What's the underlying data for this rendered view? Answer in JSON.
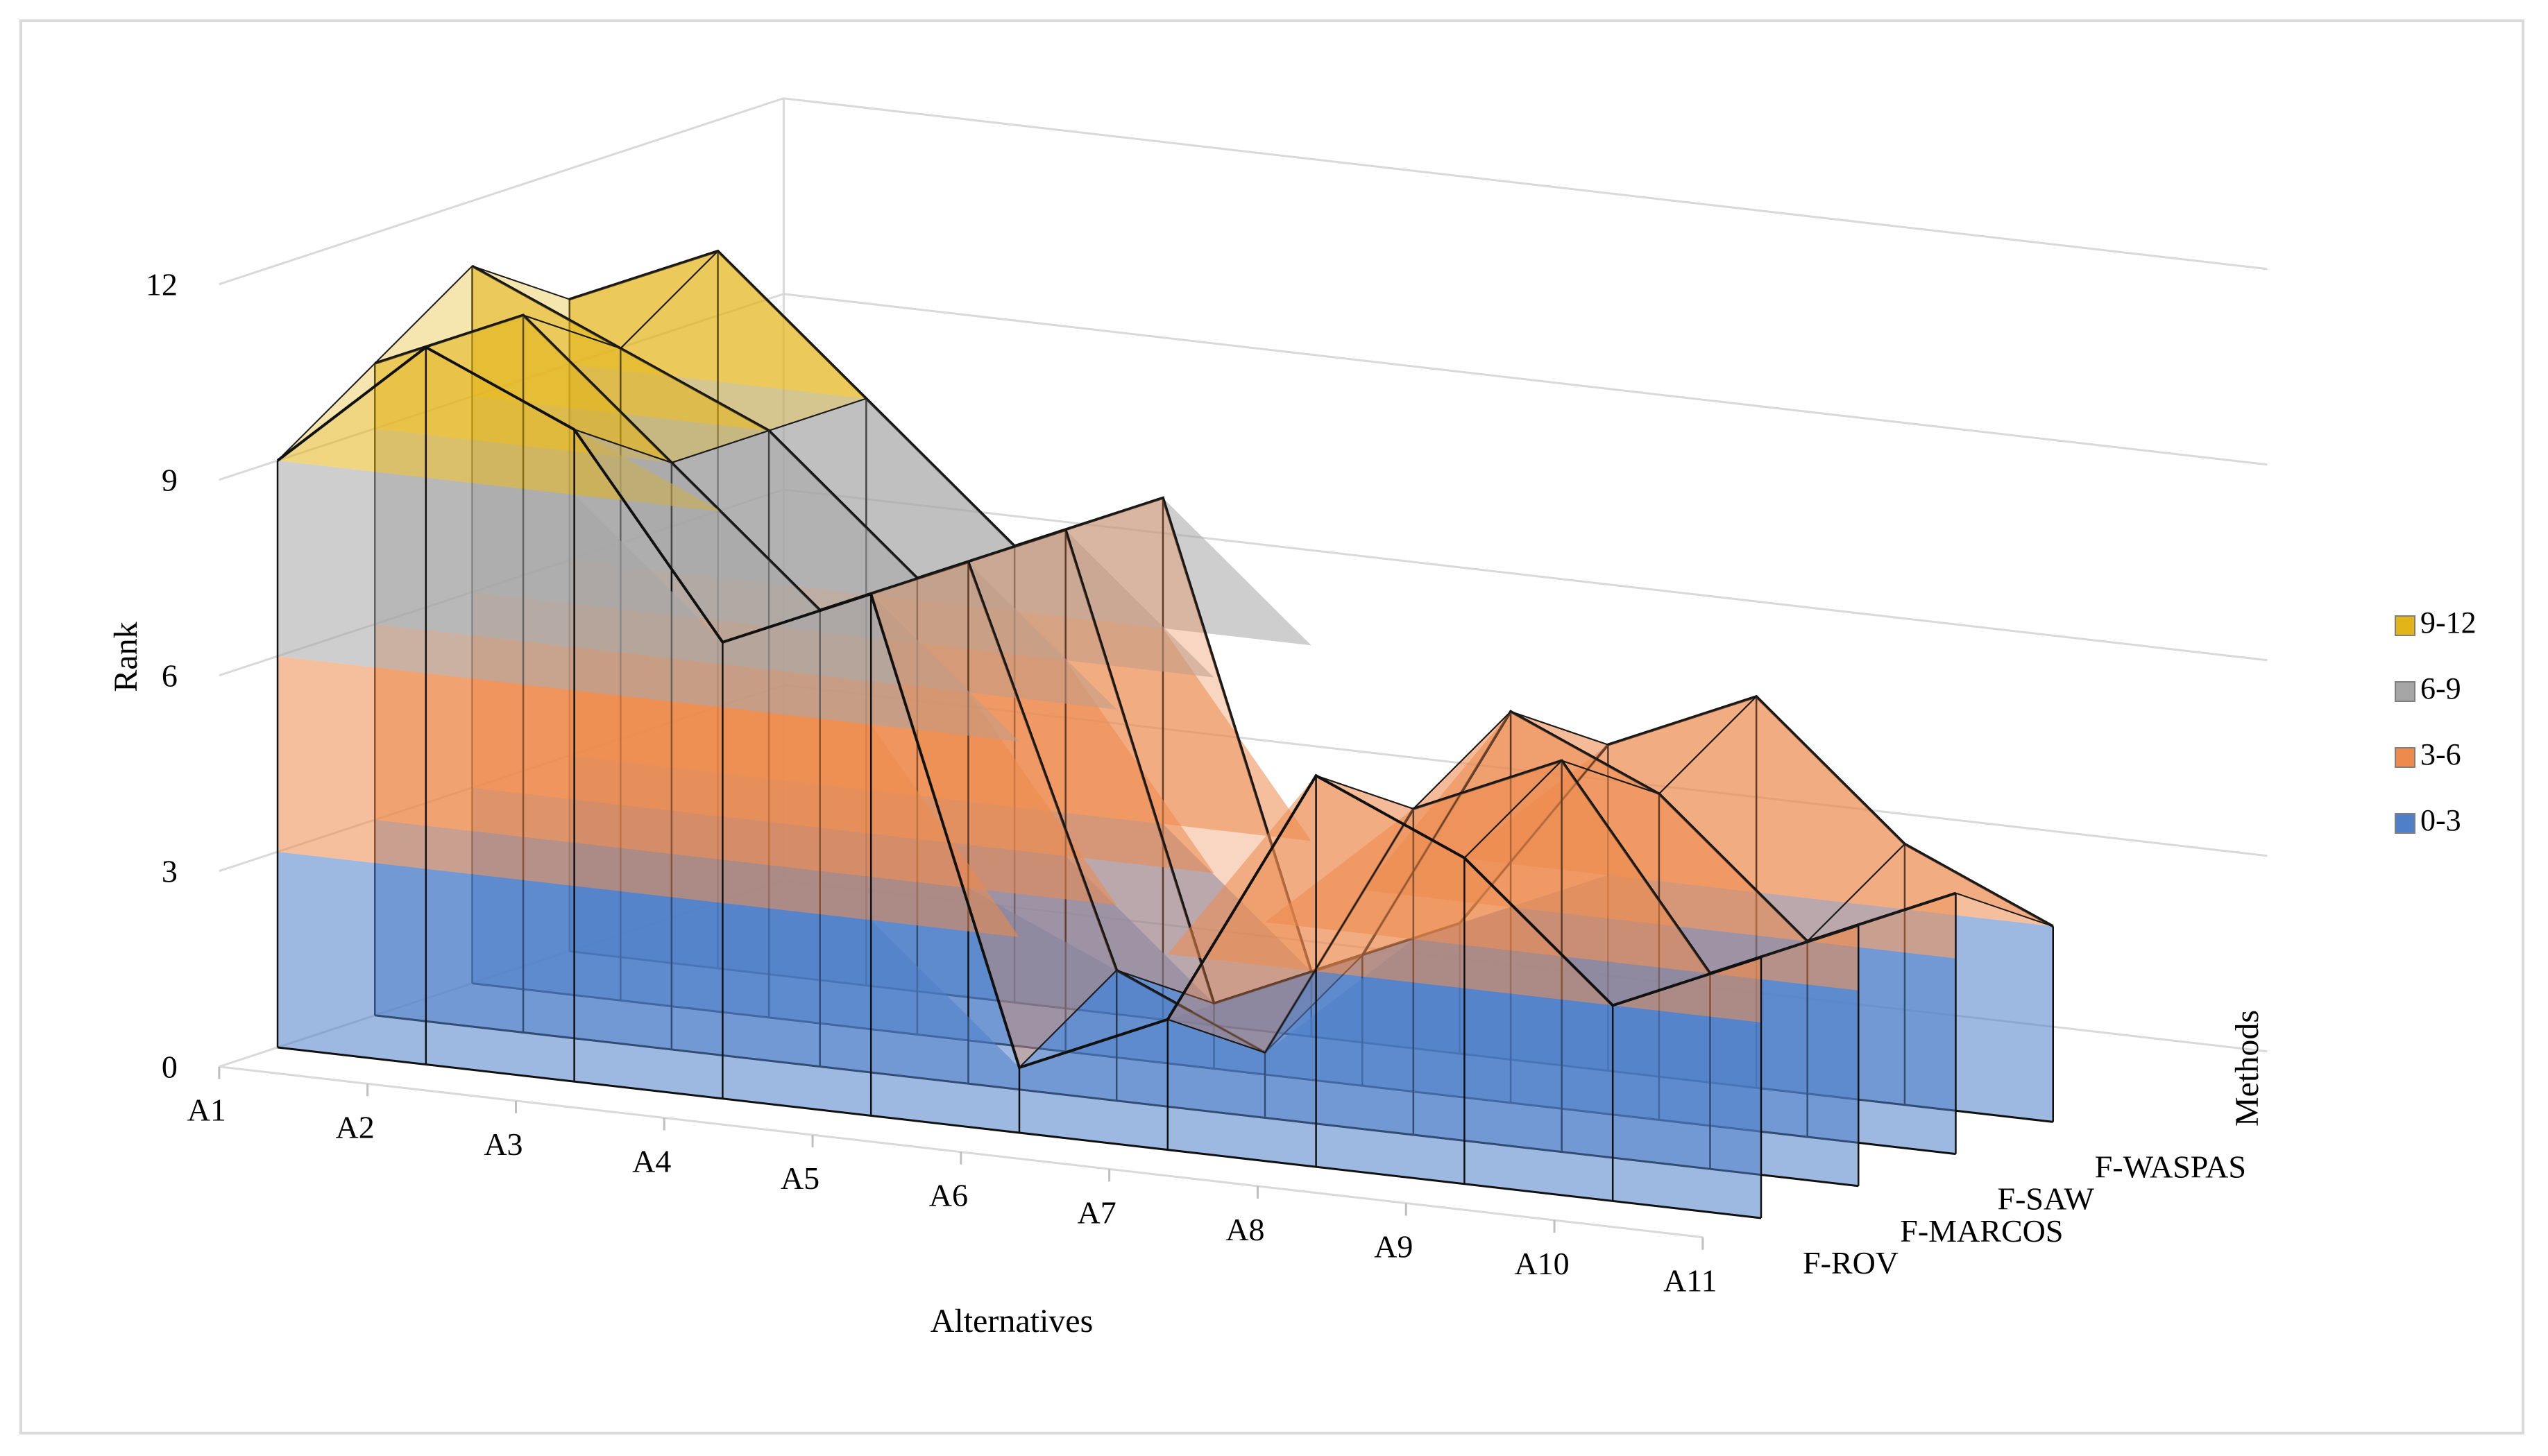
{
  "chart_data": {
    "type": "3d-surface",
    "title": "",
    "xlabel": "Alternatives",
    "ylabel": "Rank",
    "zlabel": "Methods",
    "categories": [
      "A1",
      "A2",
      "A3",
      "A4",
      "A5",
      "A6",
      "A7",
      "A8",
      "A9",
      "A10",
      "A11"
    ],
    "y_ticks": [
      "0",
      "3",
      "6",
      "9",
      "12"
    ],
    "ylim": [
      0,
      12
    ],
    "grid": true,
    "legend_position": "right",
    "series": [
      {
        "name": "F-ROV",
        "values": [
          9,
          11,
          10,
          7,
          8,
          1,
          2,
          6,
          5,
          3,
          4
        ]
      },
      {
        "name": "F-MARCOS",
        "values": [
          10,
          11,
          9,
          7,
          8,
          2,
          1,
          5,
          6,
          3,
          4
        ]
      },
      {
        "name": "F-SAW",
        "values": [
          11,
          10,
          9,
          7,
          8,
          1,
          2,
          6,
          5,
          3,
          4
        ]
      },
      {
        "name": "F-WASPAS",
        "values": [
          10,
          11,
          9,
          7,
          8,
          1,
          2,
          5,
          6,
          4,
          3
        ]
      }
    ],
    "legend": [
      {
        "label": "9-12",
        "color": "#e3b418"
      },
      {
        "label": "6-9",
        "color": "#a6a6a6"
      },
      {
        "label": "3-6",
        "color": "#ed8a4c"
      },
      {
        "label": "0-3",
        "color": "#4f7fc8"
      }
    ],
    "bands": [
      {
        "from": 0,
        "to": 3,
        "color": "#4f7fc8"
      },
      {
        "from": 3,
        "to": 6,
        "color": "#ed8a4c"
      },
      {
        "from": 6,
        "to": 9,
        "color": "#a6a6a6"
      },
      {
        "from": 9,
        "to": 12,
        "color": "#e3b418"
      }
    ]
  }
}
